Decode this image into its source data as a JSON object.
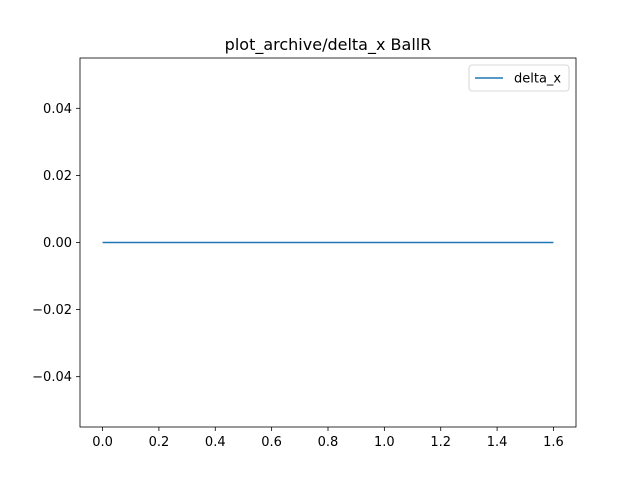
{
  "chart_data": {
    "type": "line",
    "title": "plot_archive/delta_x BallR",
    "xlabel": "",
    "ylabel": "",
    "xlim": [
      -0.08,
      1.68
    ],
    "ylim": [
      -0.055,
      0.055
    ],
    "x_ticks": [
      0.0,
      0.2,
      0.4,
      0.6,
      0.8,
      1.0,
      1.2,
      1.4,
      1.6
    ],
    "x_tick_labels": [
      "0.0",
      "0.2",
      "0.4",
      "0.6",
      "0.8",
      "1.0",
      "1.2",
      "1.4",
      "1.6"
    ],
    "y_ticks": [
      -0.04,
      -0.02,
      0.0,
      0.02,
      0.04
    ],
    "y_tick_labels": [
      "−0.04",
      "−0.02",
      "0.00",
      "0.02",
      "0.04"
    ],
    "grid": false,
    "legend_position": "top-right",
    "series": [
      {
        "name": "delta_x",
        "color": "#1f77b4",
        "x": [
          0.0,
          1.6
        ],
        "y": [
          0.0,
          0.0
        ]
      }
    ]
  }
}
